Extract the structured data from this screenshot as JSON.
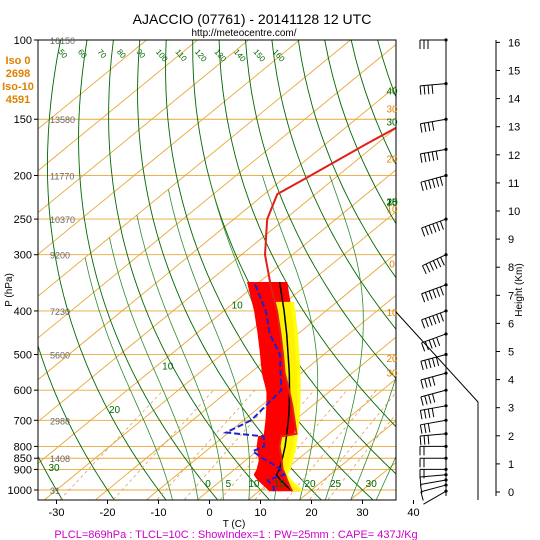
{
  "header": {
    "title": "AJACCIO (07761) - 20141128 12 UTC",
    "url": "http://meteocentre.com/"
  },
  "info_box": [
    "Iso 0",
    "2698",
    "Iso-10",
    "4591"
  ],
  "footer": {
    "text": "PLCL=869hPa : TLCL=10C : ShowIndex=1 : PW=25mm : CAPE= 437J/Kg"
  },
  "colors": {
    "temperature": "#e0201a",
    "dewpoint": "#2020d0",
    "cape_fill": "#ff0000",
    "cin_fill": "#ffff00",
    "isotherm": "#e7a838",
    "isobar": "#e7a838",
    "dry_adiabat": "#006600",
    "moist_adiabat": "#2e8b2e",
    "mixing_ratio": "#d9a066",
    "parcel": "#000000",
    "footer_text": "#cc00cc",
    "info_text": "#e08000"
  },
  "chart_data": {
    "type": "line",
    "title": "AJACCIO (07761) - 20141128 12 UTC",
    "xlabel": "T (C)",
    "ylabel": "P (hPa)",
    "y2label": "Height (Km)",
    "x_ticks": [
      -30,
      -20,
      -10,
      0,
      10,
      20,
      30,
      40
    ],
    "p_ticks": [
      100,
      150,
      200,
      250,
      300,
      400,
      500,
      600,
      700,
      800,
      850,
      900,
      1000
    ],
    "height_ticks": [
      0,
      1,
      2,
      3,
      4,
      5,
      6,
      7,
      8,
      9,
      10,
      11,
      12,
      13,
      14,
      15,
      16
    ],
    "xlim": [
      -35,
      50
    ],
    "plim": [
      100,
      1050
    ],
    "geopotential_labels": [
      {
        "p": 100,
        "text": "16150"
      },
      {
        "p": 150,
        "text": "13580"
      },
      {
        "p": 200,
        "text": "11770"
      },
      {
        "p": 250,
        "text": "10370"
      },
      {
        "p": 300,
        "text": "9200"
      },
      {
        "p": 400,
        "text": "7230"
      },
      {
        "p": 500,
        "text": "5600"
      },
      {
        "p": 700,
        "text": "2988"
      },
      {
        "p": 850,
        "text": "1408"
      },
      {
        "p": 1000,
        "text": "31"
      }
    ],
    "mixing_ratio_labels": [
      "50",
      "60",
      "70",
      "80",
      "90",
      "100",
      "110",
      "120",
      "130",
      "140",
      "150",
      "160"
    ],
    "adiabat_labels": [
      {
        "text": "40",
        "t": -16,
        "p": 132
      },
      {
        "text": "30",
        "t": -28,
        "p": 155
      },
      {
        "text": "25",
        "t": -29,
        "p": 233
      },
      {
        "text": "10",
        "t": -28,
        "p": 233
      },
      {
        "text": "15",
        "t": -13,
        "p": 233
      },
      {
        "text": "20",
        "t": 0,
        "p": 233
      },
      {
        "text": "25",
        "t": 14,
        "p": 233
      },
      {
        "text": "30",
        "t": 26,
        "p": 233
      },
      {
        "text": "30",
        "t": 62,
        "p": 145
      },
      {
        "text": "20",
        "t": 55,
        "p": 187
      },
      {
        "text": "10",
        "t": 50,
        "p": 242
      },
      {
        "text": "0",
        "t": 43,
        "p": 320
      },
      {
        "text": "10",
        "t": 39,
        "p": 410
      },
      {
        "text": "20",
        "t": 38,
        "p": 520
      },
      {
        "text": "30",
        "t": 40,
        "p": 560
      },
      {
        "text": "10",
        "t": -38,
        "p": 395
      },
      {
        "text": "10",
        "t": -37,
        "p": 540
      },
      {
        "text": "20",
        "t": -37,
        "p": 675
      },
      {
        "text": "30",
        "t": -35,
        "p": 908
      },
      {
        "text": "0",
        "t": -1,
        "p": 985
      },
      {
        "text": "5",
        "t": 3,
        "p": 985
      },
      {
        "text": "10",
        "t": 8,
        "p": 985
      },
      {
        "text": "15",
        "t": 13,
        "p": 985
      },
      {
        "text": "20",
        "t": 19,
        "p": 985
      },
      {
        "text": "25",
        "t": 24,
        "p": 985
      },
      {
        "text": "30",
        "t": 31,
        "p": 985
      }
    ],
    "series": [
      {
        "name": "temperature",
        "points": [
          [
            1006,
            16.5
          ],
          [
            990,
            15.4
          ],
          [
            950,
            12.8
          ],
          [
            925,
            11.2
          ],
          [
            900,
            9.4
          ],
          [
            850,
            6.5
          ],
          [
            800,
            3.3
          ],
          [
            760,
            1.2
          ],
          [
            750,
            3.6
          ],
          [
            700,
            0.0
          ],
          [
            650,
            -3.9
          ],
          [
            600,
            -8.3
          ],
          [
            550,
            -13.2
          ],
          [
            500,
            -18.0
          ],
          [
            450,
            -23.4
          ],
          [
            400,
            -29.6
          ],
          [
            350,
            -37.1
          ],
          [
            300,
            -45.4
          ],
          [
            250,
            -53.5
          ],
          [
            220,
            -57.5
          ],
          [
            200,
            -55.4
          ],
          [
            170,
            -52.0
          ],
          [
            150,
            -49.0
          ],
          [
            130,
            -49.5
          ],
          [
            120,
            -49.2
          ],
          [
            110,
            -51.0
          ],
          [
            100,
            -51.8
          ]
        ]
      },
      {
        "name": "dewpoint",
        "points": [
          [
            1006,
            12.8
          ],
          [
            990,
            12.2
          ],
          [
            950,
            9.0
          ],
          [
            925,
            11.0
          ],
          [
            900,
            9.0
          ],
          [
            870,
            5.5
          ],
          [
            850,
            2.8
          ],
          [
            820,
            -0.8
          ],
          [
            800,
            0.3
          ],
          [
            760,
            -2.2
          ],
          [
            745,
            -10.5
          ],
          [
            700,
            -8.5
          ],
          [
            600,
            -9.8
          ],
          [
            500,
            -18.6
          ],
          [
            450,
            -25.5
          ],
          [
            400,
            -31.8
          ],
          [
            345,
            -41.0
          ]
        ]
      },
      {
        "name": "parcel",
        "points": [
          [
            1006,
            16.5
          ],
          [
            980,
            14.2
          ],
          [
            950,
            11.5
          ],
          [
            925,
            9.5
          ],
          [
            900,
            8.8
          ],
          [
            869,
            7.5
          ],
          [
            850,
            6.7
          ],
          [
            800,
            4.4
          ],
          [
            750,
            1.7
          ],
          [
            700,
            -1.2
          ],
          [
            650,
            -4.5
          ],
          [
            600,
            -8.2
          ],
          [
            550,
            -12.3
          ],
          [
            500,
            -17.0
          ],
          [
            450,
            -22.2
          ],
          [
            400,
            -28.2
          ],
          [
            345,
            -36.0
          ]
        ]
      }
    ],
    "wind_profile": [
      {
        "p": 1006,
        "dir": 240,
        "spd": 5
      },
      {
        "p": 975,
        "dir": 255,
        "spd": 10
      },
      {
        "p": 950,
        "dir": 260,
        "spd": 15
      },
      {
        "p": 925,
        "dir": 265,
        "spd": 15
      },
      {
        "p": 900,
        "dir": 270,
        "spd": 20
      },
      {
        "p": 850,
        "dir": 270,
        "spd": 25
      },
      {
        "p": 800,
        "dir": 270,
        "spd": 25
      },
      {
        "p": 750,
        "dir": 265,
        "spd": 30
      },
      {
        "p": 700,
        "dir": 260,
        "spd": 35
      },
      {
        "p": 650,
        "dir": 260,
        "spd": 40
      },
      {
        "p": 600,
        "dir": 255,
        "spd": 45
      },
      {
        "p": 550,
        "dir": 255,
        "spd": 45
      },
      {
        "p": 500,
        "dir": 255,
        "spd": 50
      },
      {
        "p": 450,
        "dir": 250,
        "spd": 55
      },
      {
        "p": 400,
        "dir": 250,
        "spd": 60
      },
      {
        "p": 350,
        "dir": 250,
        "spd": 65
      },
      {
        "p": 300,
        "dir": 245,
        "spd": 70
      },
      {
        "p": 250,
        "dir": 250,
        "spd": 75
      },
      {
        "p": 200,
        "dir": 255,
        "spd": 65
      },
      {
        "p": 175,
        "dir": 260,
        "spd": 55
      },
      {
        "p": 150,
        "dir": 260,
        "spd": 45
      },
      {
        "p": 125,
        "dir": 265,
        "spd": 40
      },
      {
        "p": 100,
        "dir": 270,
        "spd": 30
      }
    ],
    "grid": true
  }
}
